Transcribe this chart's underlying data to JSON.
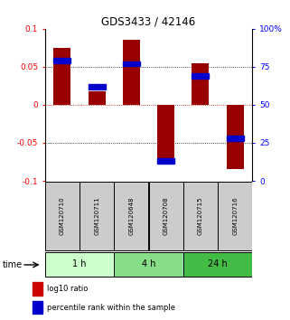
{
  "title": "GDS3433 / 42146",
  "samples": [
    "GSM120710",
    "GSM120711",
    "GSM120648",
    "GSM120708",
    "GSM120715",
    "GSM120716"
  ],
  "log10_ratio": [
    0.075,
    0.018,
    0.085,
    -0.073,
    0.055,
    -0.085
  ],
  "percentile": [
    79,
    62,
    77,
    13,
    69,
    28
  ],
  "ylim": [
    -0.1,
    0.1
  ],
  "yticks_left": [
    -0.1,
    -0.05,
    0,
    0.05,
    0.1
  ],
  "yticks_right": [
    0,
    25,
    50,
    75,
    100
  ],
  "bar_color": "#990000",
  "dot_color": "#0000cc",
  "zero_line_color": "#cc0000",
  "grid_color": "#000000",
  "time_groups": [
    {
      "label": "1 h",
      "color": "#ccffcc"
    },
    {
      "label": "4 h",
      "color": "#88dd88"
    },
    {
      "label": "24 h",
      "color": "#44bb44"
    }
  ],
  "legend_bar_color": "#cc0000",
  "legend_dot_color": "#0000cc",
  "legend_label1": "log10 ratio",
  "legend_label2": "percentile rank within the sample",
  "time_label": "time",
  "bg_sample_color": "#cccccc",
  "bar_width": 0.5
}
